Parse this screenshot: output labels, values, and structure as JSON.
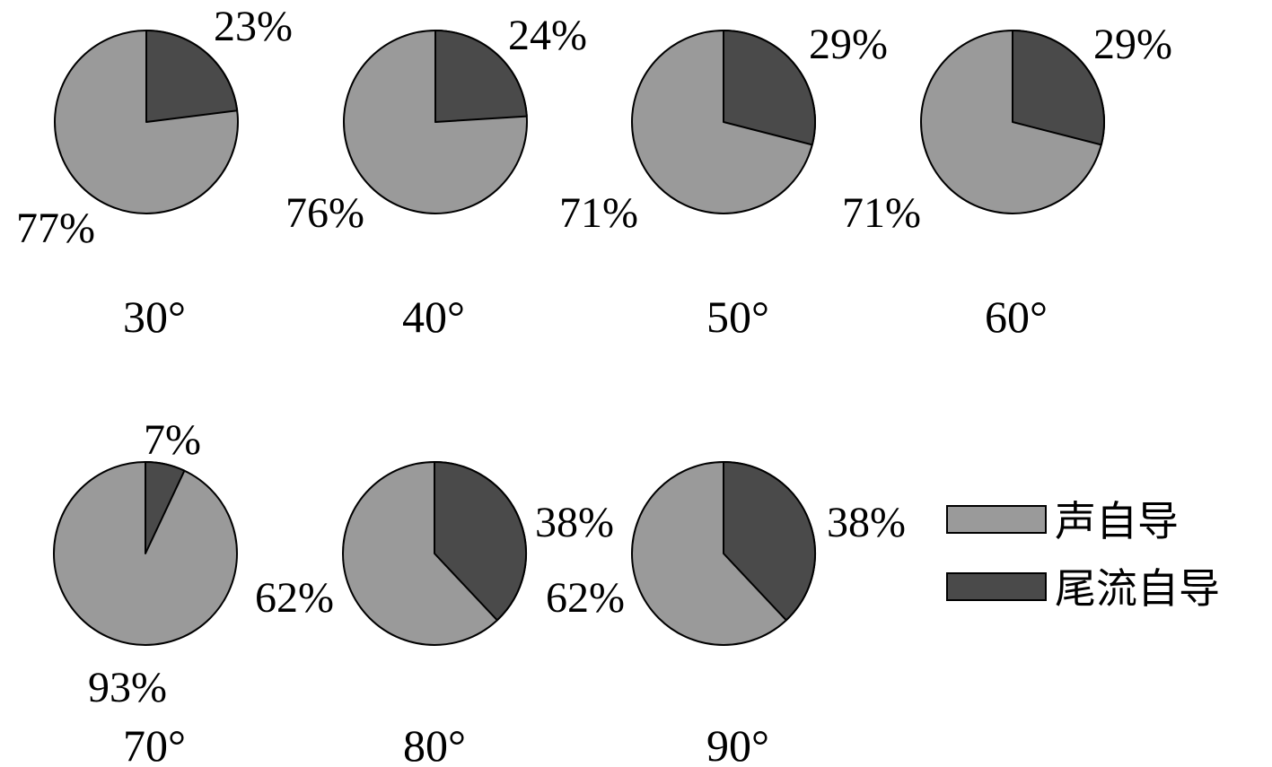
{
  "chart_data": {
    "type": "pie",
    "series_names": [
      "声自导",
      "尾流自导"
    ],
    "colors": {
      "声自导": "#9a9a9a",
      "尾流自导": "#4a4a4a"
    },
    "legend": {
      "position": "right",
      "entries": [
        "声自导",
        "尾流自导"
      ]
    },
    "charts": [
      {
        "caption": "30°",
        "values": [
          77,
          23
        ],
        "labels": [
          "77%",
          "23%"
        ]
      },
      {
        "caption": "40°",
        "values": [
          76,
          24
        ],
        "labels": [
          "76%",
          "24%"
        ]
      },
      {
        "caption": "50°",
        "values": [
          71,
          29
        ],
        "labels": [
          "71%",
          "29%"
        ]
      },
      {
        "caption": "60°",
        "values": [
          71,
          29
        ],
        "labels": [
          "71%",
          "29%"
        ]
      },
      {
        "caption": "70°",
        "values": [
          93,
          7
        ],
        "labels": [
          "93%",
          "7%"
        ]
      },
      {
        "caption": "80°",
        "values": [
          62,
          38
        ],
        "labels": [
          "62%",
          "38%"
        ]
      },
      {
        "caption": "90°",
        "values": [
          62,
          38
        ],
        "labels": [
          "62%",
          "38%"
        ]
      }
    ]
  }
}
